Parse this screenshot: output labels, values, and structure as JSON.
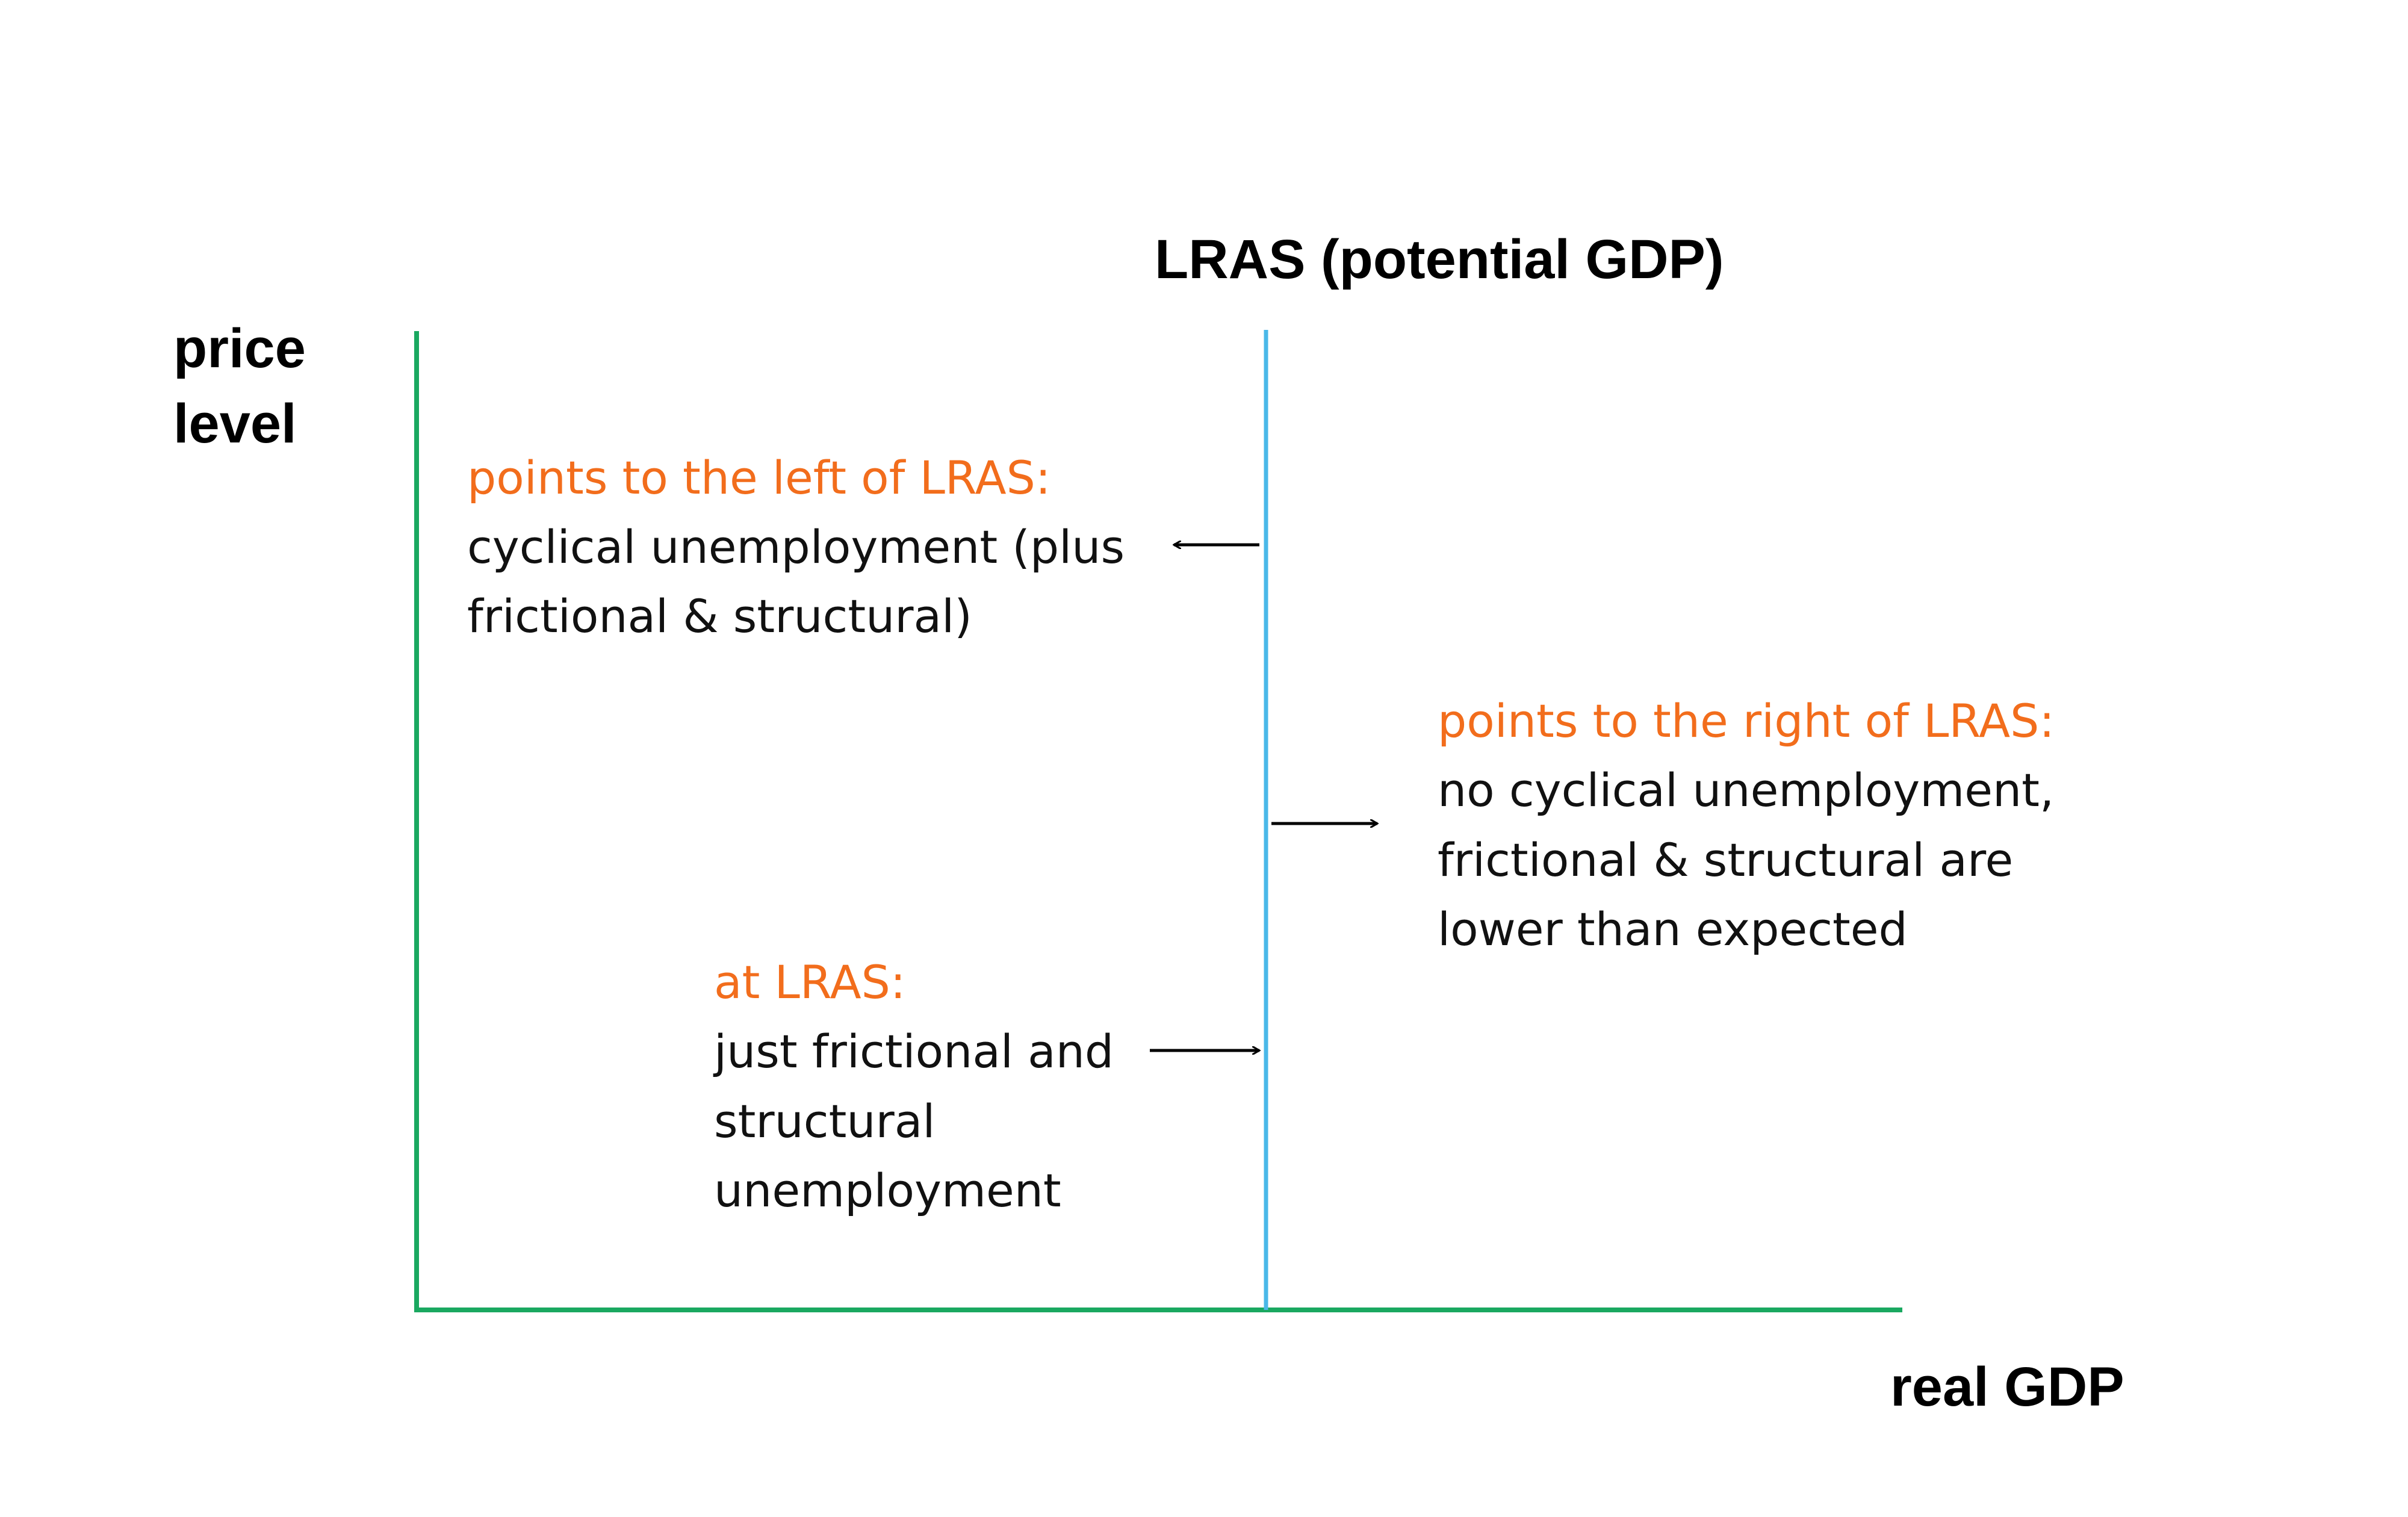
{
  "colors": {
    "axis": "#1aa860",
    "lras_line": "#4ab8e8",
    "heading": "#f26d1c",
    "text": "#111111",
    "arrow": "#000000"
  },
  "axes": {
    "y_label_line1": "price",
    "y_label_line2": "level",
    "x_label": "real GDP"
  },
  "lras": {
    "label": "LRAS (potential GDP)"
  },
  "annotations": {
    "left": {
      "heading": "points to the left of LRAS:",
      "lines": [
        "cyclical unemployment (plus",
        "frictional & structural)"
      ]
    },
    "right": {
      "heading": "points to the right of LRAS:",
      "lines": [
        "no cyclical unemployment,",
        "frictional & structural are",
        "lower than expected"
      ]
    },
    "at": {
      "heading": "at LRAS:",
      "lines": [
        "just frictional and",
        "structural",
        "unemployment"
      ]
    }
  }
}
